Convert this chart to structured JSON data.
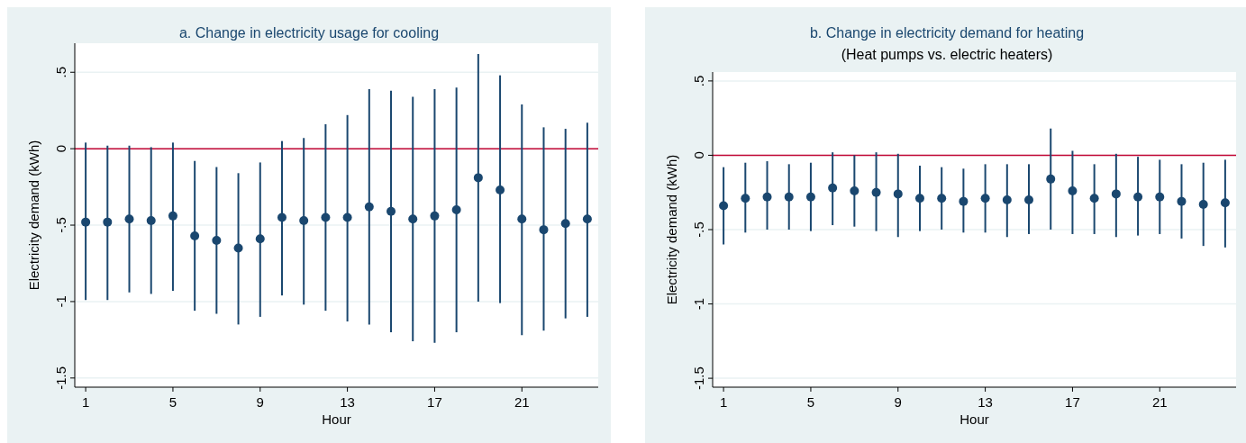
{
  "chart_data": [
    {
      "type": "scatter",
      "title": "a. Change in electricity usage for cooling",
      "xlabel": "Hour",
      "ylabel": "Electricity demand (kWh)",
      "x": [
        1,
        2,
        3,
        4,
        5,
        6,
        7,
        8,
        9,
        10,
        11,
        12,
        13,
        14,
        15,
        16,
        17,
        18,
        19,
        20,
        21,
        22,
        23,
        24
      ],
      "values": [
        -0.48,
        -0.48,
        -0.46,
        -0.47,
        -0.44,
        -0.57,
        -0.6,
        -0.65,
        -0.59,
        -0.45,
        -0.47,
        -0.45,
        -0.45,
        -0.38,
        -0.41,
        -0.46,
        -0.44,
        -0.4,
        -0.19,
        -0.27,
        -0.46,
        -0.53,
        -0.49,
        -0.46
      ],
      "errors": [
        [
          -0.99,
          0.04
        ],
        [
          -0.99,
          0.02
        ],
        [
          -0.94,
          0.02
        ],
        [
          -0.95,
          0.01
        ],
        [
          -0.93,
          0.04
        ],
        [
          -1.06,
          -0.08
        ],
        [
          -1.08,
          -0.12
        ],
        [
          -1.15,
          -0.16
        ],
        [
          -1.1,
          -0.09
        ],
        [
          -0.96,
          0.05
        ],
        [
          -1.02,
          0.07
        ],
        [
          -1.06,
          0.16
        ],
        [
          -1.13,
          0.22
        ],
        [
          -1.15,
          0.39
        ],
        [
          -1.2,
          0.38
        ],
        [
          -1.26,
          0.34
        ],
        [
          -1.27,
          0.39
        ],
        [
          -1.2,
          0.4
        ],
        [
          -1.0,
          0.62
        ],
        [
          -1.01,
          0.48
        ],
        [
          -1.22,
          0.29
        ],
        [
          -1.19,
          0.14
        ],
        [
          -1.11,
          0.13
        ],
        [
          -1.1,
          0.17
        ]
      ],
      "color": "#1a476f",
      "marker": "circle",
      "grid": "y",
      "xlim": [
        0.5,
        24.5
      ],
      "xticks": [
        1,
        5,
        9,
        13,
        17,
        21
      ],
      "ylim": [
        -1.56,
        0.69
      ],
      "yticks": [
        {
          "value": 0.5,
          "label": ".5"
        },
        {
          "value": 0,
          "label": "0"
        },
        {
          "value": -0.5,
          "label": "-.5"
        },
        {
          "value": -1,
          "label": "-1"
        },
        {
          "value": -1.5,
          "label": "-1.5"
        }
      ],
      "ref_lines": [
        {
          "axis": "y",
          "value": 0,
          "color": "#c10534"
        }
      ]
    },
    {
      "type": "scatter",
      "title": "b. Change in electricity demand for heating",
      "subtitle": "(Heat pumps vs. electric heaters)",
      "xlabel": "Hour",
      "ylabel": "Electricity demand (kWh)",
      "x": [
        1,
        2,
        3,
        4,
        5,
        6,
        7,
        8,
        9,
        10,
        11,
        12,
        13,
        14,
        15,
        16,
        17,
        18,
        19,
        20,
        21,
        22,
        23,
        24
      ],
      "values": [
        -0.34,
        -0.29,
        -0.28,
        -0.28,
        -0.28,
        -0.22,
        -0.24,
        -0.25,
        -0.26,
        -0.29,
        -0.29,
        -0.31,
        -0.29,
        -0.3,
        -0.3,
        -0.16,
        -0.24,
        -0.29,
        -0.26,
        -0.28,
        -0.28,
        -0.31,
        -0.33,
        -0.32
      ],
      "errors": [
        [
          -0.6,
          -0.08
        ],
        [
          -0.52,
          -0.05
        ],
        [
          -0.5,
          -0.04
        ],
        [
          -0.5,
          -0.06
        ],
        [
          -0.51,
          -0.05
        ],
        [
          -0.47,
          0.02
        ],
        [
          -0.48,
          0.0
        ],
        [
          -0.51,
          0.02
        ],
        [
          -0.55,
          0.01
        ],
        [
          -0.51,
          -0.07
        ],
        [
          -0.5,
          -0.08
        ],
        [
          -0.52,
          -0.09
        ],
        [
          -0.52,
          -0.06
        ],
        [
          -0.55,
          -0.06
        ],
        [
          -0.53,
          -0.06
        ],
        [
          -0.5,
          0.18
        ],
        [
          -0.53,
          0.03
        ],
        [
          -0.53,
          -0.06
        ],
        [
          -0.55,
          0.01
        ],
        [
          -0.54,
          -0.01
        ],
        [
          -0.53,
          -0.03
        ],
        [
          -0.56,
          -0.06
        ],
        [
          -0.61,
          -0.05
        ],
        [
          -0.62,
          -0.03
        ]
      ],
      "color": "#1a476f",
      "marker": "circle",
      "grid": "y",
      "xlim": [
        0.5,
        24.5
      ],
      "xticks": [
        1,
        5,
        9,
        13,
        17,
        21
      ],
      "ylim": [
        -1.56,
        0.56
      ],
      "yticks": [
        {
          "value": 0.5,
          "label": ".5"
        },
        {
          "value": 0,
          "label": "0"
        },
        {
          "value": -0.5,
          "label": "-.5"
        },
        {
          "value": -1,
          "label": "-1"
        },
        {
          "value": -1.5,
          "label": "-1.5"
        }
      ],
      "ref_lines": [
        {
          "axis": "y",
          "value": 0,
          "color": "#c10534"
        }
      ]
    }
  ]
}
